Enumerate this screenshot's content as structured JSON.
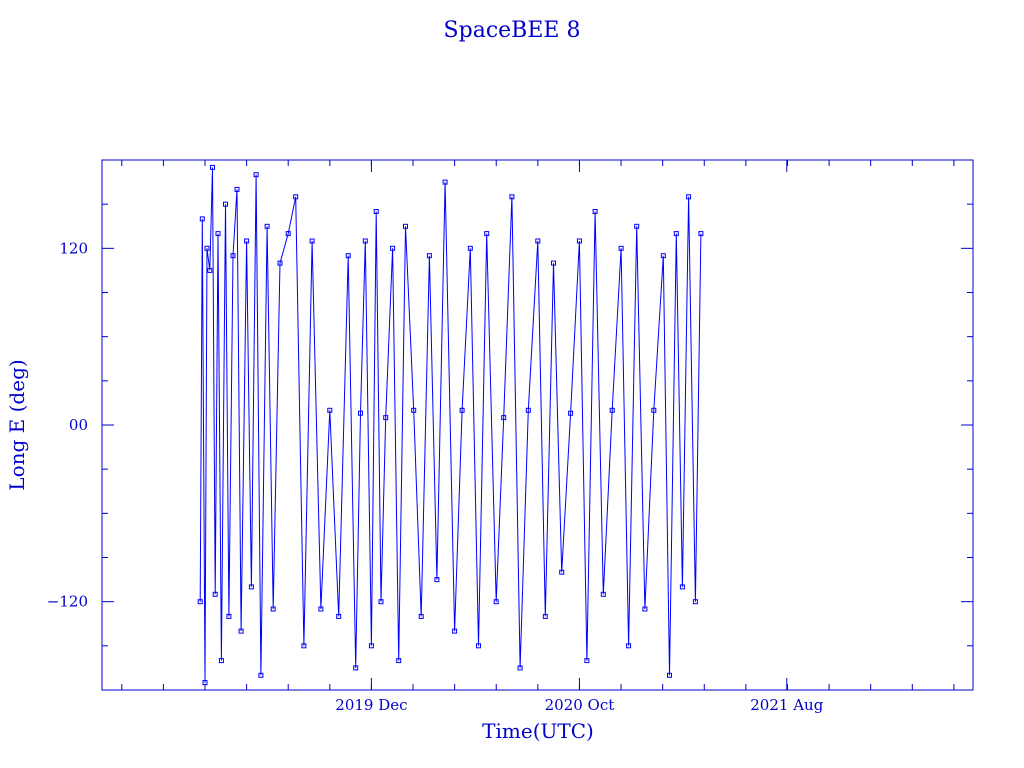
{
  "chart_data": {
    "type": "line",
    "title": "SpaceBEE 8",
    "xlabel": "Time(UTC)",
    "ylabel": "Long E (deg)",
    "xlim": [
      "2018-11-01",
      "2022-05-01"
    ],
    "ylim": [
      -180,
      180
    ],
    "x_ticks": [
      {
        "date": "2019-12-01",
        "label": "2019 Dec"
      },
      {
        "date": "2020-10-01",
        "label": "2020 Oct"
      },
      {
        "date": "2021-08-01",
        "label": "2021 Aug"
      }
    ],
    "y_ticks": [
      {
        "value": 120,
        "label": "120"
      },
      {
        "value": 0,
        "label": "00"
      },
      {
        "value": -120,
        "label": "−120"
      }
    ],
    "marker": "square",
    "line_color": "#0000ff",
    "axis_color": "#0000cc",
    "grid": false,
    "series": [
      {
        "x": [
          "2019-03-25",
          "2019-03-28",
          "2019-04-01",
          "2019-04-04",
          "2019-04-08",
          "2019-04-12",
          "2019-04-16",
          "2019-04-20",
          "2019-04-25",
          "2019-05-01",
          "2019-05-06",
          "2019-05-12",
          "2019-05-18",
          "2019-05-24",
          "2019-06-01",
          "2019-06-08",
          "2019-06-15",
          "2019-06-22",
          "2019-07-01",
          "2019-07-10",
          "2019-07-20",
          "2019-08-01",
          "2019-08-12",
          "2019-08-24",
          "2019-09-05",
          "2019-09-18",
          "2019-10-01",
          "2019-10-14",
          "2019-10-28",
          "2019-11-08",
          "2019-11-15",
          "2019-11-22",
          "2019-12-01",
          "2019-12-08",
          "2019-12-15",
          "2019-12-22",
          "2020-01-01",
          "2020-01-10",
          "2020-01-20",
          "2020-02-01",
          "2020-02-12",
          "2020-02-24",
          "2020-03-06",
          "2020-03-18",
          "2020-04-01",
          "2020-04-12",
          "2020-04-24",
          "2020-05-06",
          "2020-05-18",
          "2020-06-01",
          "2020-06-12",
          "2020-06-24",
          "2020-07-06",
          "2020-07-18",
          "2020-08-01",
          "2020-08-12",
          "2020-08-24",
          "2020-09-05",
          "2020-09-18",
          "2020-10-01",
          "2020-10-12",
          "2020-10-24",
          "2020-11-05",
          "2020-11-18",
          "2020-12-01",
          "2020-12-12",
          "2020-12-24",
          "2021-01-05",
          "2021-01-18",
          "2021-02-01",
          "2021-02-10",
          "2021-02-20",
          "2021-03-01",
          "2021-03-10",
          "2021-03-20",
          "2021-03-28"
        ],
        "y": [
          -120,
          140,
          -175,
          120,
          105,
          175,
          -115,
          130,
          -160,
          150,
          -130,
          115,
          160,
          -140,
          125,
          -110,
          170,
          -170,
          135,
          -125,
          110,
          130,
          155,
          -150,
          125,
          -125,
          10,
          -130,
          115,
          -165,
          8,
          125,
          -150,
          145,
          -120,
          5,
          120,
          -160,
          135,
          10,
          -130,
          115,
          -105,
          165,
          -140,
          10,
          120,
          -150,
          130,
          -120,
          5,
          155,
          -165,
          10,
          125,
          -130,
          110,
          -100,
          8,
          125,
          -160,
          145,
          -115,
          10,
          120,
          -150,
          135,
          -125,
          10,
          115,
          -170,
          130,
          -110,
          155,
          -120,
          130
        ]
      }
    ]
  }
}
